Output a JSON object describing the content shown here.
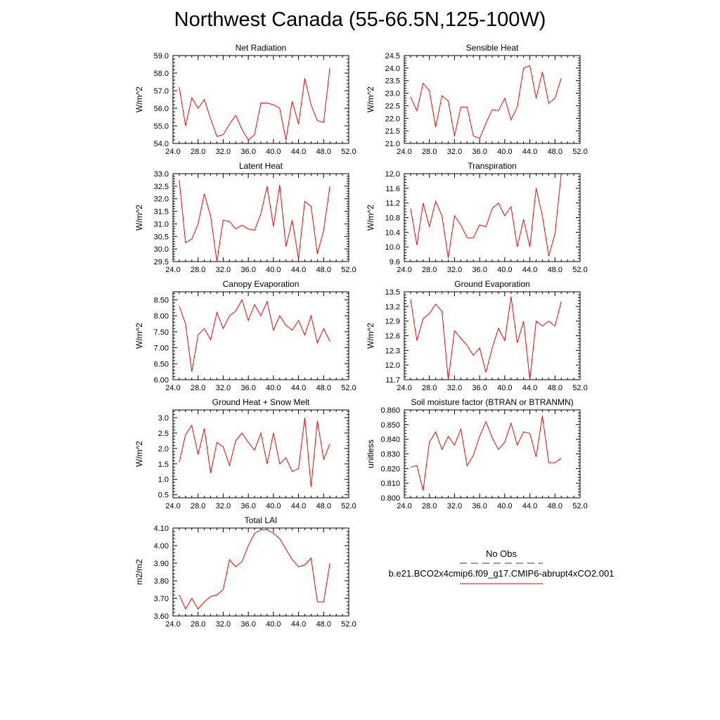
{
  "title": "Northwest Canada (55-66.5N,125-100W)",
  "chart_data": [
    {
      "type": "line",
      "title": "Net Radiation",
      "ylabel": "W/m^2",
      "xlim": [
        24,
        52
      ],
      "ylim": [
        54,
        59
      ],
      "xticks": [
        "24.0",
        "28.0",
        "32.0",
        "36.0",
        "40.0",
        "44.0",
        "48.0",
        "52.0"
      ],
      "yticks": [
        "54.0",
        "55.0",
        "56.0",
        "57.0",
        "58.0",
        "59.0"
      ],
      "x": [
        25,
        26,
        27,
        28,
        29,
        30,
        31,
        32,
        33,
        34,
        35,
        36,
        37,
        38,
        39,
        40,
        41,
        42,
        43,
        44,
        45,
        46,
        47,
        48,
        49
      ],
      "series": [
        {
          "name": "b.e21.BCO2x4cmip6.f09_g17.CMIP6-abrupt4xCO2.001",
          "color": "#ff0000",
          "values": [
            57.2,
            55.0,
            56.6,
            56.0,
            56.5,
            55.4,
            54.4,
            54.5,
            55.1,
            55.6,
            54.8,
            54.2,
            54.5,
            56.3,
            56.3,
            56.2,
            56.0,
            54.2,
            56.4,
            55.1,
            57.7,
            56.2,
            55.3,
            55.2,
            58.3
          ]
        }
      ]
    },
    {
      "type": "line",
      "title": "Sensible Heat",
      "ylabel": "W/m^2",
      "xlim": [
        24,
        52
      ],
      "ylim": [
        21,
        24.5
      ],
      "xticks": [
        "24.0",
        "28.0",
        "32.0",
        "36.0",
        "40.0",
        "44.0",
        "48.0",
        "52.0"
      ],
      "yticks": [
        "21.0",
        "21.5",
        "22.0",
        "22.5",
        "23.0",
        "23.5",
        "24.0",
        "24.5"
      ],
      "x": [
        25,
        26,
        27,
        28,
        29,
        30,
        31,
        32,
        33,
        34,
        35,
        36,
        37,
        38,
        39,
        40,
        41,
        42,
        43,
        44,
        45,
        46,
        47,
        48,
        49
      ],
      "series": [
        {
          "name": "b.e21.BCO2x4cmip6.f09_g17.CMIP6-abrupt4xCO2.001",
          "color": "#ff0000",
          "values": [
            22.85,
            22.3,
            23.4,
            23.1,
            21.65,
            22.9,
            22.7,
            21.3,
            22.45,
            22.45,
            21.3,
            21.2,
            21.8,
            22.35,
            22.3,
            22.8,
            21.95,
            22.45,
            24.0,
            24.1,
            22.8,
            23.85,
            22.6,
            22.8,
            23.6
          ]
        }
      ]
    },
    {
      "type": "line",
      "title": "Latent Heat",
      "ylabel": "W/m^2",
      "xlim": [
        24,
        52
      ],
      "ylim": [
        29.5,
        33
      ],
      "xticks": [
        "24.0",
        "28.0",
        "32.0",
        "36.0",
        "40.0",
        "44.0",
        "48.0",
        "52.0"
      ],
      "yticks": [
        "29.5",
        "30.0",
        "30.5",
        "31.0",
        "31.5",
        "32.0",
        "32.5",
        "33.0"
      ],
      "x": [
        25,
        26,
        27,
        28,
        29,
        30,
        31,
        32,
        33,
        34,
        35,
        36,
        37,
        38,
        39,
        40,
        41,
        42,
        43,
        44,
        45,
        46,
        47,
        48,
        49
      ],
      "series": [
        {
          "name": "b.e21.BCO2x4cmip6.f09_g17.CMIP6-abrupt4xCO2.001",
          "color": "#ff0000",
          "values": [
            32.75,
            30.25,
            30.4,
            31.0,
            32.2,
            31.3,
            29.5,
            31.15,
            31.1,
            30.8,
            30.95,
            30.8,
            30.75,
            31.4,
            32.5,
            30.9,
            32.55,
            30.1,
            31.15,
            29.6,
            31.9,
            31.7,
            29.8,
            30.75,
            32.5
          ]
        }
      ]
    },
    {
      "type": "line",
      "title": "Transpiration",
      "ylabel": "W/m^2",
      "xlim": [
        24,
        52
      ],
      "ylim": [
        9.6,
        12
      ],
      "xticks": [
        "24.0",
        "28.0",
        "32.0",
        "36.0",
        "40.0",
        "44.0",
        "48.0",
        "52.0"
      ],
      "yticks": [
        "9.6",
        "10.0",
        "10.4",
        "10.8",
        "11.2",
        "11.6",
        "12.0"
      ],
      "x": [
        25,
        26,
        27,
        28,
        29,
        30,
        31,
        32,
        33,
        34,
        35,
        36,
        37,
        38,
        39,
        40,
        41,
        42,
        43,
        44,
        45,
        46,
        47,
        48,
        49
      ],
      "series": [
        {
          "name": "b.e21.BCO2x4cmip6.f09_g17.CMIP6-abrupt4xCO2.001",
          "color": "#ff0000",
          "values": [
            11.05,
            10.05,
            11.2,
            10.55,
            11.25,
            10.85,
            9.7,
            10.85,
            10.6,
            10.25,
            10.25,
            10.6,
            10.55,
            11.05,
            11.2,
            10.85,
            11.1,
            10.0,
            10.75,
            10.0,
            11.6,
            10.85,
            9.75,
            10.35,
            12.0
          ]
        }
      ]
    },
    {
      "type": "line",
      "title": "Canopy Evaporation",
      "ylabel": "W/m^2",
      "xlim": [
        24,
        52
      ],
      "ylim": [
        6,
        8.75
      ],
      "xticks": [
        "24.0",
        "28.0",
        "32.0",
        "36.0",
        "40.0",
        "44.0",
        "48.0",
        "52.0"
      ],
      "yticks": [
        "6.00",
        "6.50",
        "7.00",
        "7.50",
        "8.00",
        "8.50"
      ],
      "x": [
        25,
        26,
        27,
        28,
        29,
        30,
        31,
        32,
        33,
        34,
        35,
        36,
        37,
        38,
        39,
        40,
        41,
        42,
        43,
        44,
        45,
        46,
        47,
        48,
        49
      ],
      "series": [
        {
          "name": "b.e21.BCO2x4cmip6.f09_g17.CMIP6-abrupt4xCO2.001",
          "color": "#ff0000",
          "values": [
            8.3,
            7.75,
            6.25,
            7.4,
            7.6,
            7.25,
            8.1,
            7.6,
            8.0,
            8.15,
            8.5,
            7.85,
            8.35,
            8.0,
            8.45,
            7.55,
            8.0,
            7.7,
            7.55,
            7.85,
            7.4,
            8.0,
            7.15,
            7.6,
            7.2
          ]
        }
      ]
    },
    {
      "type": "line",
      "title": "Ground Evaporation",
      "ylabel": "W/m^2",
      "xlim": [
        24,
        52
      ],
      "ylim": [
        11.7,
        13.5
      ],
      "xticks": [
        "24.0",
        "28.0",
        "32.0",
        "36.0",
        "40.0",
        "44.0",
        "48.0",
        "52.0"
      ],
      "yticks": [
        "11.7",
        "12.0",
        "12.3",
        "12.6",
        "12.9",
        "13.2",
        "13.5"
      ],
      "x": [
        25,
        26,
        27,
        28,
        29,
        30,
        31,
        32,
        33,
        34,
        35,
        36,
        37,
        38,
        39,
        40,
        41,
        42,
        43,
        44,
        45,
        46,
        47,
        48,
        49
      ],
      "series": [
        {
          "name": "b.e21.BCO2x4cmip6.f09_g17.CMIP6-abrupt4xCO2.001",
          "color": "#ff0000",
          "values": [
            13.35,
            12.5,
            12.95,
            13.05,
            13.25,
            13.1,
            11.7,
            12.7,
            12.55,
            12.4,
            12.2,
            12.35,
            11.85,
            12.35,
            12.75,
            12.5,
            13.4,
            12.45,
            12.9,
            11.7,
            12.9,
            12.8,
            12.9,
            12.8,
            13.3
          ]
        }
      ]
    },
    {
      "type": "line",
      "title": "Ground Heat + Snow Melt",
      "ylabel": "W/m^2",
      "xlim": [
        24,
        52
      ],
      "ylim": [
        0.4,
        3.25
      ],
      "xticks": [
        "24.0",
        "28.0",
        "32.0",
        "36.0",
        "40.0",
        "44.0",
        "48.0",
        "52.0"
      ],
      "yticks": [
        "0.5",
        "1.0",
        "1.5",
        "2.0",
        "2.5",
        "3.0"
      ],
      "x": [
        25,
        26,
        27,
        28,
        29,
        30,
        31,
        32,
        33,
        34,
        35,
        36,
        37,
        38,
        39,
        40,
        41,
        42,
        43,
        44,
        45,
        46,
        47,
        48,
        49
      ],
      "series": [
        {
          "name": "b.e21.BCO2x4cmip6.f09_g17.CMIP6-abrupt4xCO2.001",
          "color": "#ff0000",
          "values": [
            1.55,
            2.45,
            2.75,
            1.8,
            2.65,
            1.2,
            2.2,
            2.05,
            1.45,
            2.25,
            2.5,
            2.2,
            1.95,
            2.5,
            1.5,
            2.5,
            1.5,
            1.7,
            1.25,
            1.35,
            3.0,
            0.75,
            2.9,
            1.65,
            2.15
          ]
        }
      ]
    },
    {
      "type": "line",
      "title": "Soil moisture factor (BTRAN or BTRANMN)",
      "ylabel": "unitless",
      "xlim": [
        24,
        52
      ],
      "ylim": [
        0.8,
        0.86
      ],
      "xticks": [
        "24.0",
        "28.0",
        "32.0",
        "36.0",
        "40.0",
        "44.0",
        "48.0",
        "52.0"
      ],
      "yticks": [
        "0.800",
        "0.810",
        "0.820",
        "0.830",
        "0.840",
        "0.850",
        "0.860"
      ],
      "x": [
        25,
        26,
        27,
        28,
        29,
        30,
        31,
        32,
        33,
        34,
        35,
        36,
        37,
        38,
        39,
        40,
        41,
        42,
        43,
        44,
        45,
        46,
        47,
        48,
        49
      ],
      "series": [
        {
          "name": "b.e21.BCO2x4cmip6.f09_g17.CMIP6-abrupt4xCO2.001",
          "color": "#ff0000",
          "values": [
            0.821,
            0.822,
            0.805,
            0.838,
            0.845,
            0.833,
            0.842,
            0.836,
            0.847,
            0.822,
            0.829,
            0.842,
            0.852,
            0.841,
            0.833,
            0.838,
            0.851,
            0.836,
            0.845,
            0.844,
            0.828,
            0.856,
            0.824,
            0.824,
            0.827
          ]
        }
      ]
    },
    {
      "type": "line",
      "title": "Total LAI",
      "ylabel": "m2/m2",
      "xlim": [
        24,
        52
      ],
      "ylim": [
        3.6,
        4.1
      ],
      "xticks": [
        "24.0",
        "28.0",
        "32.0",
        "36.0",
        "40.0",
        "44.0",
        "48.0",
        "52.0"
      ],
      "yticks": [
        "3.60",
        "3.70",
        "3.80",
        "3.90",
        "4.00",
        "4.10"
      ],
      "x": [
        25,
        26,
        27,
        28,
        29,
        30,
        31,
        32,
        33,
        34,
        35,
        36,
        37,
        38,
        39,
        40,
        41,
        42,
        43,
        44,
        45,
        46,
        47,
        48,
        49
      ],
      "series": [
        {
          "name": "b.e21.BCO2x4cmip6.f09_g17.CMIP6-abrupt4xCO2.001",
          "color": "#ff0000",
          "values": [
            3.72,
            3.64,
            3.7,
            3.64,
            3.68,
            3.71,
            3.72,
            3.75,
            3.92,
            3.88,
            3.91,
            4.0,
            4.07,
            4.09,
            4.09,
            4.07,
            4.04,
            3.98,
            3.92,
            3.88,
            3.89,
            3.93,
            3.68,
            3.68,
            3.9
          ]
        }
      ]
    }
  ],
  "legend": {
    "entries": [
      {
        "label": "No Obs",
        "color": "#2e2eb8",
        "style": "dashed"
      },
      {
        "label": "b.e21.BCO2x4cmip6.f09_g17.CMIP6-abrupt4xCO2.001",
        "color": "#ff0000",
        "style": "solid"
      }
    ]
  }
}
